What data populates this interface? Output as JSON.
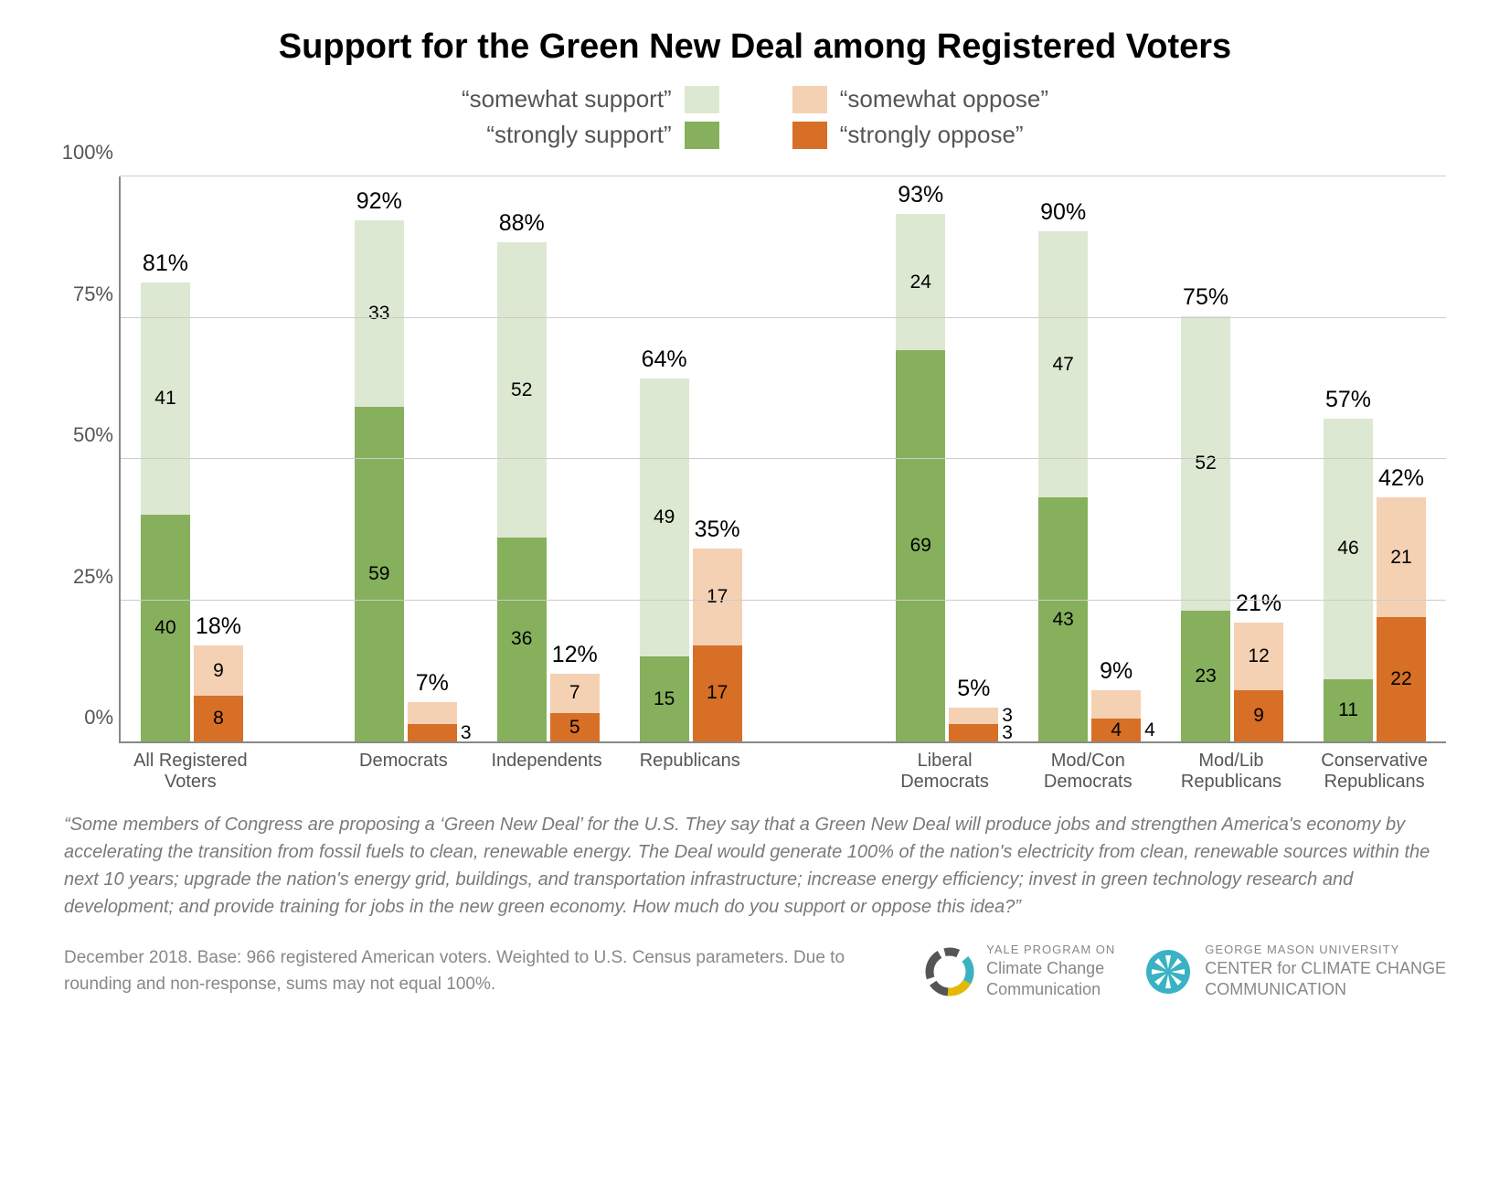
{
  "title": "Support for the Green New Deal among Registered Voters",
  "title_fontsize": 38,
  "legend": {
    "fontsize": 26,
    "items": [
      {
        "label": "“somewhat support”",
        "color": "#dde8d2"
      },
      {
        "label": "“strongly support”",
        "color": "#86b05c"
      },
      {
        "label": "“somewhat oppose”",
        "color": "#f5d1b3"
      },
      {
        "label": "“strongly oppose”",
        "color": "#d76f26"
      }
    ]
  },
  "chart": {
    "type": "stacked-bar-grouped",
    "ylim": [
      0,
      100
    ],
    "ytick_step": 25,
    "yticks": [
      "0%",
      "25%",
      "50%",
      "75%",
      "100%"
    ],
    "axis_fontsize": 22,
    "value_fontsize": 21,
    "total_fontsize": 25,
    "xlabel_fontsize": 20,
    "grid_color": "#cccccc",
    "axis_color": "#888888",
    "colors": {
      "strongly_support": "#86b05c",
      "somewhat_support": "#dde8d2",
      "strongly_oppose": "#d76f26",
      "somewhat_oppose": "#f5d1b3"
    },
    "groups": [
      {
        "label": "All Registered Voters",
        "support_total": 81,
        "oppose_total": 18,
        "strongly_support": 40,
        "somewhat_support": 41,
        "strongly_oppose": 8,
        "somewhat_oppose": 9,
        "oppose_side_label": null
      },
      {
        "gap": true,
        "wide": false
      },
      {
        "label": "Democrats",
        "support_total": 92,
        "oppose_total": 7,
        "strongly_support": 59,
        "somewhat_support": 33,
        "strongly_oppose": 3,
        "somewhat_oppose": 4,
        "oppose_side_label": "3"
      },
      {
        "label": "Independents",
        "support_total": 88,
        "oppose_total": 12,
        "strongly_support": 36,
        "somewhat_support": 52,
        "strongly_oppose": 5,
        "somewhat_oppose": 7,
        "oppose_side_label": null
      },
      {
        "label": "Republicans",
        "support_total": 64,
        "oppose_total": 35,
        "strongly_support": 15,
        "somewhat_support": 49,
        "strongly_oppose": 17,
        "somewhat_oppose": 17,
        "oppose_side_label": null
      },
      {
        "gap": true,
        "wide": true
      },
      {
        "label": "Liberal Democrats",
        "support_total": 93,
        "oppose_total": 5,
        "strongly_support": 69,
        "somewhat_support": 24,
        "strongly_oppose": 3,
        "somewhat_oppose": 3,
        "oppose_side_label": "3\n3"
      },
      {
        "label": "Mod/Con Democrats",
        "support_total": 90,
        "oppose_total": 9,
        "strongly_support": 43,
        "somewhat_support": 47,
        "strongly_oppose": 4,
        "somewhat_oppose": 5,
        "oppose_side_label": "4"
      },
      {
        "label": "Mod/Lib Republicans",
        "support_total": 75,
        "oppose_total": 21,
        "strongly_support": 23,
        "somewhat_support": 52,
        "strongly_oppose": 9,
        "somewhat_oppose": 12,
        "oppose_side_label": null
      },
      {
        "label": "Conservative Republicans",
        "support_total": 57,
        "oppose_total": 42,
        "strongly_support": 11,
        "somewhat_support": 46,
        "strongly_oppose": 22,
        "somewhat_oppose": 21,
        "oppose_side_label": null
      }
    ]
  },
  "question": "“Some members of Congress are proposing a ‘Green New Deal’ for the U.S. They say that a Green New Deal will produce jobs and strengthen America's economy by accelerating the transition from fossil fuels to clean, renewable energy. The Deal would generate 100% of the nation's electricity from clean, renewable sources within the next 10 years; upgrade the nation's energy grid, buildings, and transportation infrastructure; increase energy efficiency; invest in green technology research and development; and provide training for jobs in the new green economy. How much do you support or oppose this idea?”",
  "question_fontsize": 20,
  "source": "December 2018. Base: 966 registered American voters. Weighted to U.S. Census parameters. Due to rounding and non-response, sums may not equal 100%.",
  "source_fontsize": 19,
  "logos": {
    "yale": {
      "line1": "YALE PROGRAM ON",
      "line2": "Climate Change",
      "line3": "Communication"
    },
    "gmu": {
      "line1": "GEORGE MASON UNIVERSITY",
      "line2": "CENTER for CLIMATE CHANGE",
      "line3": "COMMUNICATION"
    }
  }
}
